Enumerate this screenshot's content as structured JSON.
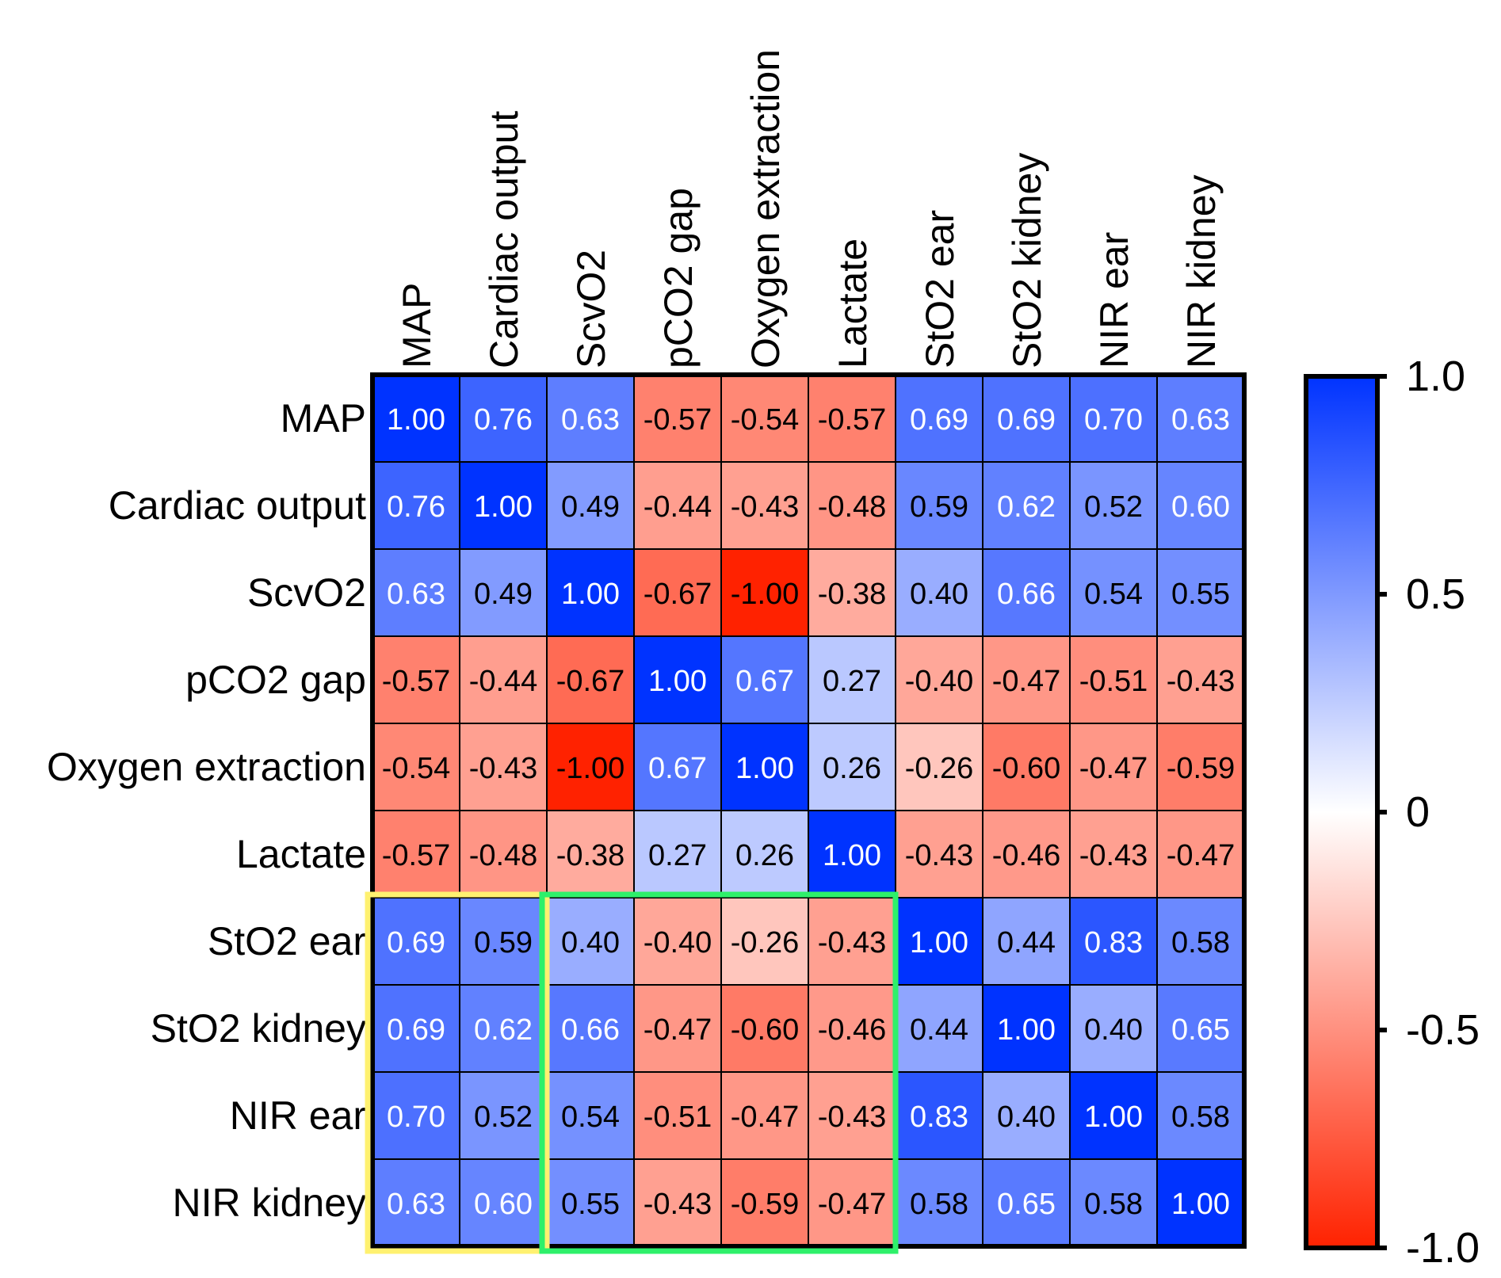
{
  "chart_data": {
    "type": "heatmap",
    "title": "",
    "variables": [
      "MAP",
      "Cardiac output",
      "ScvO2",
      "pCO2 gap",
      "Oxygen extraction",
      "Lactate",
      "StO2 ear",
      "StO2 kidney",
      "NIR ear",
      "NIR kidney"
    ],
    "matrix": [
      [
        1.0,
        0.76,
        0.63,
        -0.57,
        -0.54,
        -0.57,
        0.69,
        0.69,
        0.7,
        0.63
      ],
      [
        0.76,
        1.0,
        0.49,
        -0.44,
        -0.43,
        -0.48,
        0.59,
        0.62,
        0.52,
        0.6
      ],
      [
        0.63,
        0.49,
        1.0,
        -0.67,
        -1.0,
        -0.38,
        0.4,
        0.66,
        0.54,
        0.55
      ],
      [
        -0.57,
        -0.44,
        -0.67,
        1.0,
        0.67,
        0.27,
        -0.4,
        -0.47,
        -0.51,
        -0.43
      ],
      [
        -0.54,
        -0.43,
        -1.0,
        0.67,
        1.0,
        0.26,
        -0.26,
        -0.6,
        -0.47,
        -0.59
      ],
      [
        -0.57,
        -0.48,
        -0.38,
        0.27,
        0.26,
        1.0,
        -0.43,
        -0.46,
        -0.43,
        -0.47
      ],
      [
        0.69,
        0.59,
        0.4,
        -0.4,
        -0.26,
        -0.43,
        1.0,
        0.44,
        0.83,
        0.58
      ],
      [
        0.69,
        0.62,
        0.66,
        -0.47,
        -0.6,
        -0.46,
        0.44,
        1.0,
        0.4,
        0.65
      ],
      [
        0.7,
        0.52,
        0.54,
        -0.51,
        -0.47,
        -0.43,
        0.83,
        0.4,
        1.0,
        0.58
      ],
      [
        0.63,
        0.6,
        0.55,
        -0.43,
        -0.59,
        -0.47,
        0.58,
        0.65,
        0.58,
        1.0
      ]
    ],
    "value_format": "two decimals",
    "colorbar": {
      "range": [
        -1.0,
        1.0
      ],
      "ticks": [
        1.0,
        0.5,
        0,
        -0.5,
        -1.0
      ],
      "tick_labels": [
        "1.0",
        "0.5",
        "0",
        "-0.5",
        "-1.0"
      ],
      "color_max": "#0033ff",
      "color_mid": "#ffffff",
      "color_min": "#ff2200"
    },
    "highlights": [
      {
        "name": "yellow-box",
        "color": "#fff170",
        "rows": [
          6,
          9
        ],
        "cols": [
          0,
          1
        ]
      },
      {
        "name": "green-box",
        "color": "#2ef06a",
        "rows": [
          6,
          9
        ],
        "cols": [
          2,
          5
        ]
      }
    ]
  }
}
